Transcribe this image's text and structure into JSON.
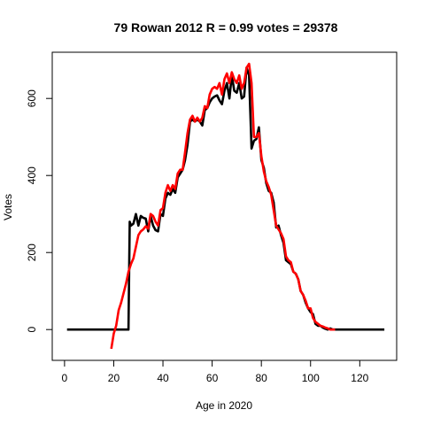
{
  "chart_data": {
    "type": "line",
    "title": "79 Rowan 2012 R = 0.99 votes = 29378",
    "xlabel": "Age in 2020",
    "ylabel": "Votes",
    "xlim": [
      -5,
      135
    ],
    "ylim": [
      -80,
      720
    ],
    "xticks": [
      0,
      20,
      40,
      60,
      80,
      100,
      120
    ],
    "yticks": [
      0,
      200,
      400,
      600
    ],
    "grid": false,
    "series": [
      {
        "color": "#000000",
        "points": [
          [
            1,
            0
          ],
          [
            5,
            0
          ],
          [
            10,
            0
          ],
          [
            15,
            0
          ],
          [
            20,
            0
          ],
          [
            26,
            0
          ],
          [
            26.5,
            280
          ],
          [
            27,
            270
          ],
          [
            28,
            275
          ],
          [
            29,
            300
          ],
          [
            30,
            270
          ],
          [
            31,
            295
          ],
          [
            32,
            290
          ],
          [
            33,
            288
          ],
          [
            34,
            255
          ],
          [
            35,
            295
          ],
          [
            36,
            270
          ],
          [
            37,
            258
          ],
          [
            38,
            255
          ],
          [
            39,
            300
          ],
          [
            40,
            295
          ],
          [
            41,
            340
          ],
          [
            42,
            355
          ],
          [
            43,
            350
          ],
          [
            44,
            365
          ],
          [
            45,
            355
          ],
          [
            46,
            395
          ],
          [
            47,
            405
          ],
          [
            48,
            415
          ],
          [
            49,
            440
          ],
          [
            50,
            480
          ],
          [
            51,
            540
          ],
          [
            52,
            545
          ],
          [
            53,
            540
          ],
          [
            54,
            545
          ],
          [
            55,
            540
          ],
          [
            56,
            530
          ],
          [
            57,
            570
          ],
          [
            58,
            575
          ],
          [
            59,
            590
          ],
          [
            60,
            600
          ],
          [
            61,
            605
          ],
          [
            62,
            608
          ],
          [
            63,
            595
          ],
          [
            64,
            585
          ],
          [
            65,
            620
          ],
          [
            66,
            640
          ],
          [
            67,
            600
          ],
          [
            68,
            660
          ],
          [
            69,
            620
          ],
          [
            70,
            615
          ],
          [
            71,
            640
          ],
          [
            72,
            600
          ],
          [
            73,
            605
          ],
          [
            74,
            680
          ],
          [
            75,
            660
          ],
          [
            76,
            470
          ],
          [
            77,
            490
          ],
          [
            78,
            495
          ],
          [
            79,
            525
          ],
          [
            80,
            440
          ],
          [
            81,
            420
          ],
          [
            82,
            380
          ],
          [
            83,
            360
          ],
          [
            84,
            355
          ],
          [
            85,
            330
          ],
          [
            86,
            265
          ],
          [
            87,
            270
          ],
          [
            88,
            245
          ],
          [
            89,
            225
          ],
          [
            90,
            180
          ],
          [
            91,
            175
          ],
          [
            92,
            170
          ],
          [
            93,
            150
          ],
          [
            94,
            145
          ],
          [
            95,
            130
          ],
          [
            96,
            100
          ],
          [
            97,
            90
          ],
          [
            98,
            70
          ],
          [
            99,
            55
          ],
          [
            100,
            45
          ],
          [
            101,
            40
          ],
          [
            102,
            15
          ],
          [
            103,
            10
          ],
          [
            104,
            10
          ],
          [
            105,
            5
          ],
          [
            106,
            2
          ],
          [
            107,
            0
          ],
          [
            108,
            3
          ],
          [
            109,
            0
          ],
          [
            110,
            0
          ],
          [
            115,
            0
          ],
          [
            120,
            0
          ],
          [
            125,
            0
          ],
          [
            130,
            0
          ]
        ]
      },
      {
        "color": "#ff0000",
        "points": [
          [
            19,
            -50
          ],
          [
            20,
            -10
          ],
          [
            21,
            10
          ],
          [
            22,
            50
          ],
          [
            23,
            70
          ],
          [
            24,
            95
          ],
          [
            25,
            120
          ],
          [
            26,
            150
          ],
          [
            27,
            170
          ],
          [
            28,
            185
          ],
          [
            29,
            215
          ],
          [
            30,
            245
          ],
          [
            31,
            255
          ],
          [
            32,
            260
          ],
          [
            33,
            268
          ],
          [
            34,
            262
          ],
          [
            35,
            300
          ],
          [
            36,
            295
          ],
          [
            37,
            280
          ],
          [
            38,
            270
          ],
          [
            39,
            310
          ],
          [
            40,
            315
          ],
          [
            41,
            355
          ],
          [
            42,
            375
          ],
          [
            43,
            360
          ],
          [
            44,
            375
          ],
          [
            45,
            365
          ],
          [
            46,
            405
          ],
          [
            47,
            415
          ],
          [
            48,
            415
          ],
          [
            49,
            460
          ],
          [
            50,
            510
          ],
          [
            51,
            545
          ],
          [
            52,
            555
          ],
          [
            53,
            540
          ],
          [
            54,
            550
          ],
          [
            55,
            540
          ],
          [
            56,
            550
          ],
          [
            57,
            580
          ],
          [
            58,
            575
          ],
          [
            59,
            610
          ],
          [
            60,
            625
          ],
          [
            61,
            630
          ],
          [
            62,
            625
          ],
          [
            63,
            640
          ],
          [
            64,
            610
          ],
          [
            65,
            650
          ],
          [
            66,
            665
          ],
          [
            67,
            640
          ],
          [
            68,
            668
          ],
          [
            69,
            650
          ],
          [
            70,
            640
          ],
          [
            71,
            660
          ],
          [
            72,
            625
          ],
          [
            73,
            640
          ],
          [
            74,
            680
          ],
          [
            75,
            690
          ],
          [
            76,
            640
          ],
          [
            77,
            500
          ],
          [
            78,
            500
          ],
          [
            79,
            510
          ],
          [
            80,
            450
          ],
          [
            81,
            410
          ],
          [
            82,
            385
          ],
          [
            83,
            370
          ],
          [
            84,
            350
          ],
          [
            85,
            310
          ],
          [
            86,
            270
          ],
          [
            87,
            260
          ],
          [
            88,
            250
          ],
          [
            89,
            235
          ],
          [
            90,
            190
          ],
          [
            91,
            180
          ],
          [
            92,
            175
          ],
          [
            93,
            150
          ],
          [
            94,
            145
          ],
          [
            95,
            130
          ],
          [
            96,
            100
          ],
          [
            97,
            90
          ],
          [
            98,
            75
          ],
          [
            99,
            55
          ],
          [
            100,
            55
          ],
          [
            101,
            30
          ],
          [
            102,
            20
          ],
          [
            103,
            15
          ],
          [
            104,
            10
          ],
          [
            105,
            8
          ],
          [
            106,
            5
          ],
          [
            107,
            3
          ],
          [
            108,
            0
          ],
          [
            109,
            0
          ],
          [
            110,
            0
          ]
        ]
      }
    ]
  }
}
